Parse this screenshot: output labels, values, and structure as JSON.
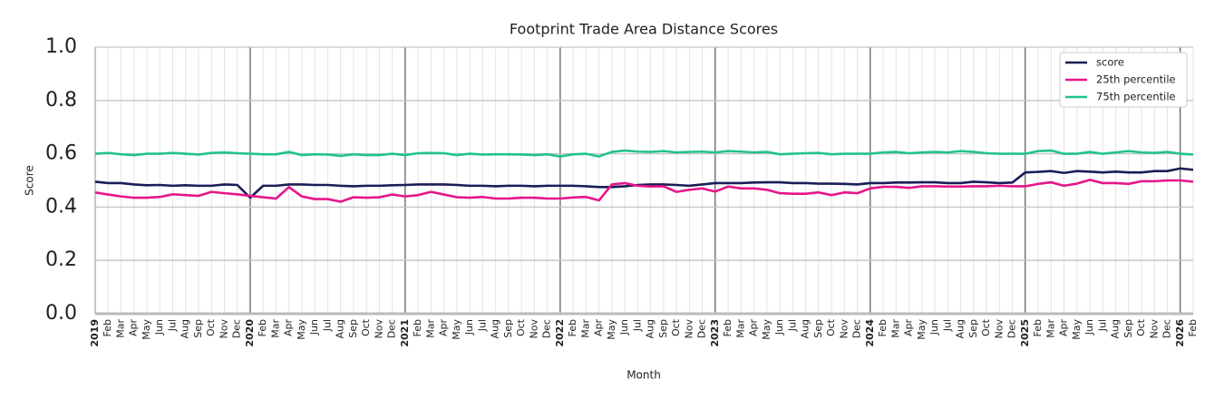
{
  "chart_data": {
    "type": "line",
    "title": "Footprint Trade Area Distance Scores",
    "xlabel": "Month",
    "ylabel": "Score",
    "categories": [
      "2019",
      "Feb",
      "Mar",
      "Apr",
      "May",
      "Jun",
      "Jul",
      "Aug",
      "Sep",
      "Oct",
      "Nov",
      "Dec",
      "2020",
      "Feb",
      "Mar",
      "Apr",
      "May",
      "Jun",
      "Jul",
      "Aug",
      "Sep",
      "Oct",
      "Nov",
      "Dec",
      "2021",
      "Feb",
      "Mar",
      "Apr",
      "May",
      "Jun",
      "Jul",
      "Aug",
      "Sep",
      "Oct",
      "Nov",
      "Dec",
      "2022",
      "Feb",
      "Mar",
      "Apr",
      "May",
      "Jun",
      "Jul",
      "Aug",
      "Sep",
      "Oct",
      "Nov",
      "Dec",
      "2023",
      "Feb",
      "Mar",
      "Apr",
      "May",
      "Jun",
      "Jul",
      "Aug",
      "Sep",
      "Oct",
      "Nov",
      "Dec",
      "2024",
      "Feb",
      "Mar",
      "Apr",
      "May",
      "Jun",
      "Jul",
      "Aug",
      "Sep",
      "Oct",
      "Nov",
      "Dec",
      "2025",
      "Feb",
      "Mar",
      "Apr",
      "May",
      "Jun",
      "Jul",
      "Aug",
      "Sep",
      "Oct",
      "Nov",
      "Dec",
      "2026",
      "Feb"
    ],
    "series": [
      {
        "name": "score",
        "color": "#1b1d57",
        "values": [
          0.495,
          0.49,
          0.49,
          0.485,
          0.482,
          0.483,
          0.48,
          0.482,
          0.48,
          0.48,
          0.485,
          0.483,
          0.435,
          0.48,
          0.48,
          0.485,
          0.485,
          0.483,
          0.483,
          0.48,
          0.478,
          0.48,
          0.48,
          0.482,
          0.483,
          0.485,
          0.485,
          0.485,
          0.483,
          0.48,
          0.48,
          0.478,
          0.48,
          0.48,
          0.478,
          0.48,
          0.48,
          0.48,
          0.478,
          0.475,
          0.475,
          0.478,
          0.483,
          0.485,
          0.485,
          0.483,
          0.48,
          0.485,
          0.49,
          0.49,
          0.49,
          0.492,
          0.493,
          0.493,
          0.49,
          0.49,
          0.488,
          0.488,
          0.487,
          0.485,
          0.49,
          0.49,
          0.492,
          0.492,
          0.493,
          0.493,
          0.49,
          0.49,
          0.495,
          0.493,
          0.49,
          0.492,
          0.53,
          0.532,
          0.535,
          0.528,
          0.535,
          0.533,
          0.53,
          0.533,
          0.53,
          0.53,
          0.535,
          0.535,
          0.545,
          0.54
        ]
      },
      {
        "name": "25th percentile",
        "color": "#e6168a",
        "values": [
          0.455,
          0.447,
          0.44,
          0.435,
          0.435,
          0.438,
          0.448,
          0.445,
          0.442,
          0.457,
          0.452,
          0.448,
          0.442,
          0.437,
          0.432,
          0.475,
          0.44,
          0.43,
          0.43,
          0.42,
          0.437,
          0.435,
          0.437,
          0.447,
          0.44,
          0.445,
          0.457,
          0.447,
          0.437,
          0.435,
          0.438,
          0.432,
          0.432,
          0.435,
          0.435,
          0.432,
          0.432,
          0.436,
          0.438,
          0.425,
          0.485,
          0.49,
          0.48,
          0.477,
          0.478,
          0.457,
          0.465,
          0.47,
          0.458,
          0.477,
          0.47,
          0.47,
          0.465,
          0.452,
          0.45,
          0.45,
          0.455,
          0.445,
          0.455,
          0.452,
          0.47,
          0.476,
          0.476,
          0.472,
          0.478,
          0.478,
          0.477,
          0.477,
          0.478,
          0.478,
          0.48,
          0.478,
          0.478,
          0.487,
          0.493,
          0.48,
          0.488,
          0.502,
          0.49,
          0.49,
          0.487,
          0.497,
          0.497,
          0.5,
          0.5,
          0.495
        ]
      },
      {
        "name": "75th percentile",
        "color": "#22c38a",
        "values": [
          0.6,
          0.603,
          0.598,
          0.595,
          0.6,
          0.6,
          0.603,
          0.6,
          0.597,
          0.603,
          0.605,
          0.602,
          0.6,
          0.598,
          0.598,
          0.607,
          0.595,
          0.598,
          0.597,
          0.592,
          0.598,
          0.595,
          0.595,
          0.6,
          0.595,
          0.602,
          0.603,
          0.602,
          0.595,
          0.6,
          0.597,
          0.598,
          0.598,
          0.597,
          0.595,
          0.598,
          0.59,
          0.598,
          0.6,
          0.59,
          0.607,
          0.612,
          0.608,
          0.607,
          0.61,
          0.605,
          0.607,
          0.608,
          0.605,
          0.61,
          0.608,
          0.605,
          0.607,
          0.598,
          0.6,
          0.602,
          0.603,
          0.598,
          0.6,
          0.6,
          0.6,
          0.605,
          0.607,
          0.602,
          0.605,
          0.607,
          0.605,
          0.61,
          0.607,
          0.602,
          0.6,
          0.6,
          0.6,
          0.61,
          0.612,
          0.6,
          0.6,
          0.607,
          0.6,
          0.605,
          0.61,
          0.605,
          0.603,
          0.607,
          0.6,
          0.597
        ]
      }
    ],
    "ylim": [
      0,
      1
    ],
    "yticks": [
      {
        "value": 0,
        "label": "0.0"
      },
      0.2,
      0.4,
      0.6,
      0.8,
      {
        "value": 1,
        "label": "1.0"
      }
    ],
    "grid": true,
    "legend": "upper right"
  }
}
